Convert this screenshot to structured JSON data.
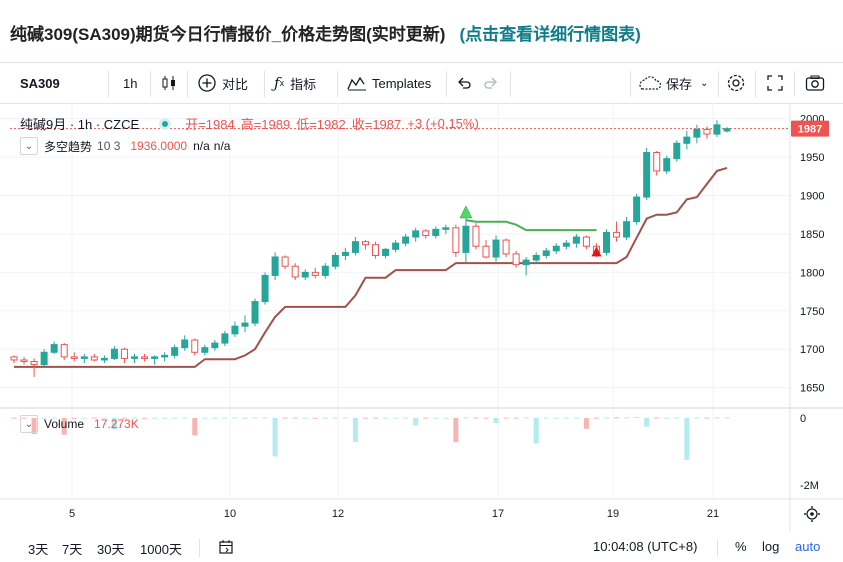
{
  "page_title": "纯碱309(SA309)期货今日行情报价_价格走势图(实时更新)",
  "page_link": "(点击查看详细行情图表)",
  "toolbar": {
    "symbol": "SA309",
    "interval": "1h",
    "compare_label": "对比",
    "indicators_label": "指标",
    "templates_label": "Templates",
    "save_label": "保存"
  },
  "legend": {
    "symbol_desc": "纯碱9月 · 1h · CZCE",
    "open": "开=1984",
    "high": "高=1989",
    "low": "低=1982",
    "close": "收=1987",
    "change": "+3 (+0.15%)",
    "indicator_name": "多空趋势",
    "indicator_params": "10 3",
    "indicator_value": "1936.0000",
    "indicator_na1": "n/a",
    "indicator_na2": "n/a"
  },
  "volume_legend": {
    "name": "Volume",
    "value": "17.273K"
  },
  "bottom_bar": {
    "ranges": [
      "3天",
      "7天",
      "30天",
      "1000天"
    ],
    "time": "10:04:08 (UTC+8)",
    "percent": "%",
    "log": "log",
    "auto": "auto"
  },
  "colors": {
    "up": "#26a69a",
    "down": "#ef5350",
    "trend_green": "#4caf50",
    "trend_brown": "#a0524a",
    "accent": "#0f7c8a"
  },
  "chart_data": {
    "type": "candlestick",
    "x_ticks": [
      "5",
      "10",
      "12",
      "17",
      "19",
      "21"
    ],
    "y_ticks": [
      2000,
      1950,
      1900,
      1850,
      1800,
      1750,
      1700,
      1650
    ],
    "ylim": [
      1630,
      2010
    ],
    "last_price": "1987",
    "price_ohlc": [
      [
        1690,
        1692,
        1682,
        1686
      ],
      [
        1686,
        1690,
        1680,
        1684
      ],
      [
        1684,
        1688,
        1664,
        1680
      ],
      [
        1680,
        1700,
        1678,
        1696
      ],
      [
        1696,
        1710,
        1694,
        1706
      ],
      [
        1706,
        1708,
        1686,
        1690
      ],
      [
        1690,
        1696,
        1684,
        1688
      ],
      [
        1688,
        1694,
        1682,
        1690
      ],
      [
        1690,
        1694,
        1684,
        1686
      ],
      [
        1686,
        1692,
        1682,
        1688
      ],
      [
        1688,
        1704,
        1686,
        1700
      ],
      [
        1700,
        1702,
        1682,
        1688
      ],
      [
        1688,
        1694,
        1682,
        1690
      ],
      [
        1690,
        1694,
        1684,
        1688
      ],
      [
        1688,
        1692,
        1680,
        1690
      ],
      [
        1690,
        1696,
        1684,
        1692
      ],
      [
        1692,
        1706,
        1688,
        1702
      ],
      [
        1702,
        1718,
        1698,
        1712
      ],
      [
        1712,
        1714,
        1692,
        1696
      ],
      [
        1696,
        1706,
        1692,
        1702
      ],
      [
        1702,
        1712,
        1698,
        1708
      ],
      [
        1708,
        1724,
        1704,
        1720
      ],
      [
        1720,
        1736,
        1716,
        1730
      ],
      [
        1730,
        1744,
        1722,
        1734
      ],
      [
        1734,
        1766,
        1730,
        1762
      ],
      [
        1762,
        1800,
        1758,
        1796
      ],
      [
        1796,
        1826,
        1790,
        1820
      ],
      [
        1820,
        1822,
        1804,
        1808
      ],
      [
        1808,
        1812,
        1790,
        1794
      ],
      [
        1794,
        1804,
        1790,
        1800
      ],
      [
        1800,
        1806,
        1792,
        1796
      ],
      [
        1796,
        1812,
        1792,
        1808
      ],
      [
        1808,
        1826,
        1804,
        1822
      ],
      [
        1822,
        1832,
        1816,
        1826
      ],
      [
        1826,
        1846,
        1822,
        1840
      ],
      [
        1840,
        1842,
        1830,
        1836
      ],
      [
        1836,
        1840,
        1818,
        1822
      ],
      [
        1822,
        1832,
        1818,
        1830
      ],
      [
        1830,
        1842,
        1826,
        1838
      ],
      [
        1838,
        1850,
        1834,
        1846
      ],
      [
        1846,
        1858,
        1840,
        1854
      ],
      [
        1854,
        1856,
        1844,
        1848
      ],
      [
        1848,
        1860,
        1844,
        1856
      ],
      [
        1856,
        1862,
        1850,
        1858
      ],
      [
        1858,
        1862,
        1820,
        1826
      ],
      [
        1826,
        1878,
        1812,
        1860
      ],
      [
        1860,
        1864,
        1830,
        1834
      ],
      [
        1834,
        1842,
        1818,
        1820
      ],
      [
        1820,
        1848,
        1814,
        1842
      ],
      [
        1842,
        1844,
        1820,
        1824
      ],
      [
        1824,
        1828,
        1806,
        1810
      ],
      [
        1810,
        1820,
        1796,
        1816
      ],
      [
        1816,
        1826,
        1812,
        1822
      ],
      [
        1822,
        1832,
        1818,
        1828
      ],
      [
        1828,
        1838,
        1824,
        1834
      ],
      [
        1834,
        1842,
        1830,
        1838
      ],
      [
        1838,
        1850,
        1832,
        1846
      ],
      [
        1846,
        1848,
        1830,
        1834
      ],
      [
        1834,
        1838,
        1820,
        1826
      ],
      [
        1826,
        1856,
        1822,
        1852
      ],
      [
        1852,
        1866,
        1840,
        1846
      ],
      [
        1846,
        1872,
        1842,
        1866
      ],
      [
        1866,
        1902,
        1862,
        1898
      ],
      [
        1898,
        1962,
        1894,
        1956
      ],
      [
        1956,
        1958,
        1926,
        1932
      ],
      [
        1932,
        1952,
        1928,
        1948
      ],
      [
        1948,
        1972,
        1944,
        1968
      ],
      [
        1968,
        1984,
        1960,
        1976
      ],
      [
        1976,
        1992,
        1968,
        1986
      ],
      [
        1986,
        1990,
        1974,
        1980
      ],
      [
        1980,
        1998,
        1976,
        1992
      ],
      [
        1984,
        1989,
        1982,
        1987
      ]
    ],
    "volume_thousands": [
      12,
      10,
      -480,
      8,
      14,
      -500,
      6,
      8,
      12,
      10,
      -340,
      8,
      10,
      6,
      12,
      8,
      10,
      14,
      -520,
      12,
      8,
      10,
      14,
      12,
      18,
      20,
      -1150,
      14,
      12,
      10,
      8,
      12,
      16,
      14,
      -720,
      10,
      12,
      8,
      10,
      14,
      -220,
      12,
      10,
      8,
      -720,
      22,
      14,
      10,
      -150,
      12,
      10,
      16,
      -760,
      14,
      10,
      12,
      8,
      -320,
      10,
      14,
      18,
      22,
      30,
      -260,
      16,
      12,
      14,
      -1250,
      18,
      14,
      20,
      17.273
    ],
    "volume_ylim": [
      -2300,
      150
    ],
    "volume_ticks": [
      "0",
      "-2M"
    ],
    "trend_lines": {
      "brown": [
        1677,
        1677,
        1677,
        1677,
        1677,
        1677,
        1677,
        1677,
        1677,
        1677,
        1677,
        1677,
        1677,
        1677,
        1677,
        1677,
        1677,
        1677,
        1677,
        1687,
        1687,
        1687,
        1687,
        1692,
        1700,
        1722,
        1742,
        1755,
        1755,
        1755,
        1755,
        1755,
        1755,
        1755,
        1770,
        1793,
        1793,
        1793,
        1803,
        1803,
        1803,
        1803,
        1803,
        1803,
        1812,
        1812,
        1812,
        1812,
        1812,
        1812,
        1812,
        1812,
        1812,
        1812,
        1812,
        1812,
        1812,
        1812,
        1812,
        1812,
        1812,
        1820,
        1845,
        1870,
        1875,
        1875,
        1878,
        1895,
        1898,
        1915,
        1932,
        1936
      ],
      "green": [
        null,
        null,
        null,
        null,
        null,
        null,
        null,
        null,
        null,
        null,
        null,
        null,
        null,
        null,
        null,
        null,
        null,
        null,
        null,
        null,
        null,
        null,
        null,
        null,
        null,
        null,
        null,
        null,
        null,
        null,
        null,
        null,
        null,
        null,
        null,
        null,
        null,
        null,
        null,
        null,
        null,
        null,
        null,
        null,
        null,
        1868,
        1866,
        1866,
        1866,
        1866,
        1862,
        1855,
        1855,
        1855,
        1855,
        1855,
        1855,
        1855,
        1855,
        null,
        null,
        null,
        null,
        null,
        null,
        null,
        null,
        null,
        null,
        null,
        null,
        null
      ]
    },
    "markers": [
      {
        "type": "up-arrow",
        "index": 45,
        "price": 1876
      },
      {
        "type": "down-arrow",
        "index": 58,
        "price": 1826
      }
    ]
  }
}
